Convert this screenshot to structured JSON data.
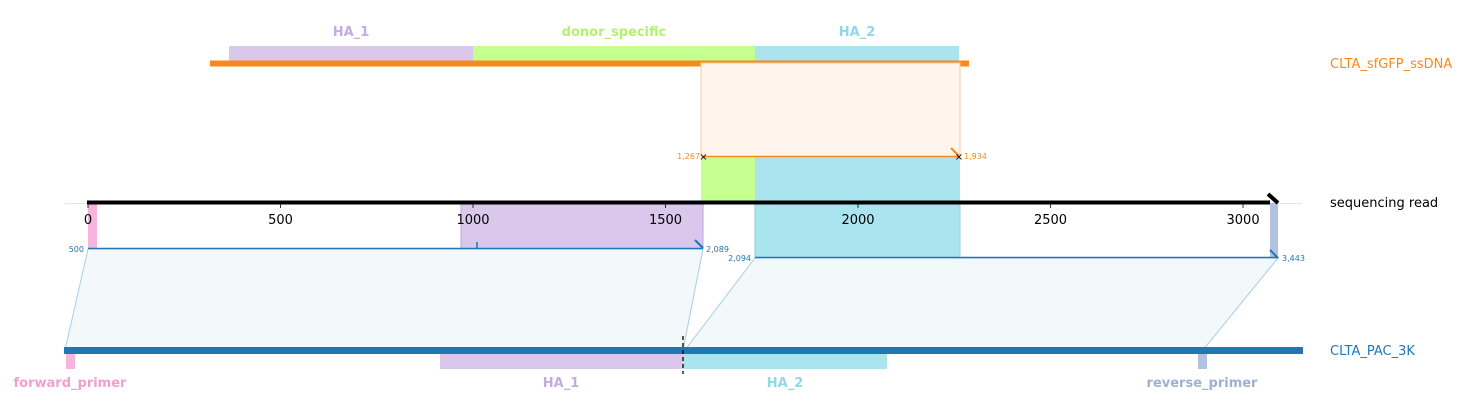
{
  "colors": {
    "ha1": "#d9c8ec",
    "ha1_text": "#c3acdf",
    "ha2": "#aae5ef",
    "ha2_text": "#8fd9e6",
    "donor": "#c5ff8f",
    "donor_text": "#b3f26e",
    "forward_primer": "#f6b4de",
    "forward_primer_text": "#f29fd0",
    "reverse_primer": "#b1c3e0",
    "reverse_primer_text": "#a1b0d1",
    "orange": "#f9891b",
    "blue": "#1f77b4",
    "black": "#000000",
    "band_orange_fill": "#fff5ec",
    "band_orange_edge": "#f9c9a0",
    "band_blue_fill": "#f3f8fb",
    "band_blue_edge": "#a9cde6"
  },
  "tracks": {
    "ssdna": {
      "label": "CLTA_sfGFP_ssDNA"
    },
    "read": {
      "label": "sequencing read"
    },
    "reference": {
      "label": "CLTA_PAC_3K"
    }
  },
  "features": {
    "ssdna_ha1": "HA_1",
    "ssdna_donor": "donor_specific",
    "ssdna_ha2": "HA_2",
    "ref_forward_primer": "forward_primer",
    "ref_ha1": "HA_1",
    "ref_ha2": "HA_2",
    "ref_reverse_primer": "reverse_primer"
  },
  "read_axis": {
    "ticks": [
      "0",
      "500",
      "1000",
      "1500",
      "2000",
      "2500",
      "3000"
    ],
    "tick_values": [
      0,
      500,
      1000,
      1500,
      2000,
      2500,
      3000
    ],
    "min": 0,
    "max": 3070
  },
  "alignments": {
    "ssdna_alignment": {
      "read_start": 1588,
      "read_end": 2258,
      "start_label": "1,267",
      "end_label": "1,934"
    },
    "reference_alignment_1": {
      "read_start": 0,
      "read_end": 1588,
      "start_label": "500",
      "end_label": "2,089"
    },
    "reference_alignment_2": {
      "read_start": 1720,
      "read_end": 3070,
      "start_label": "2,094",
      "end_label": "3,443"
    }
  }
}
